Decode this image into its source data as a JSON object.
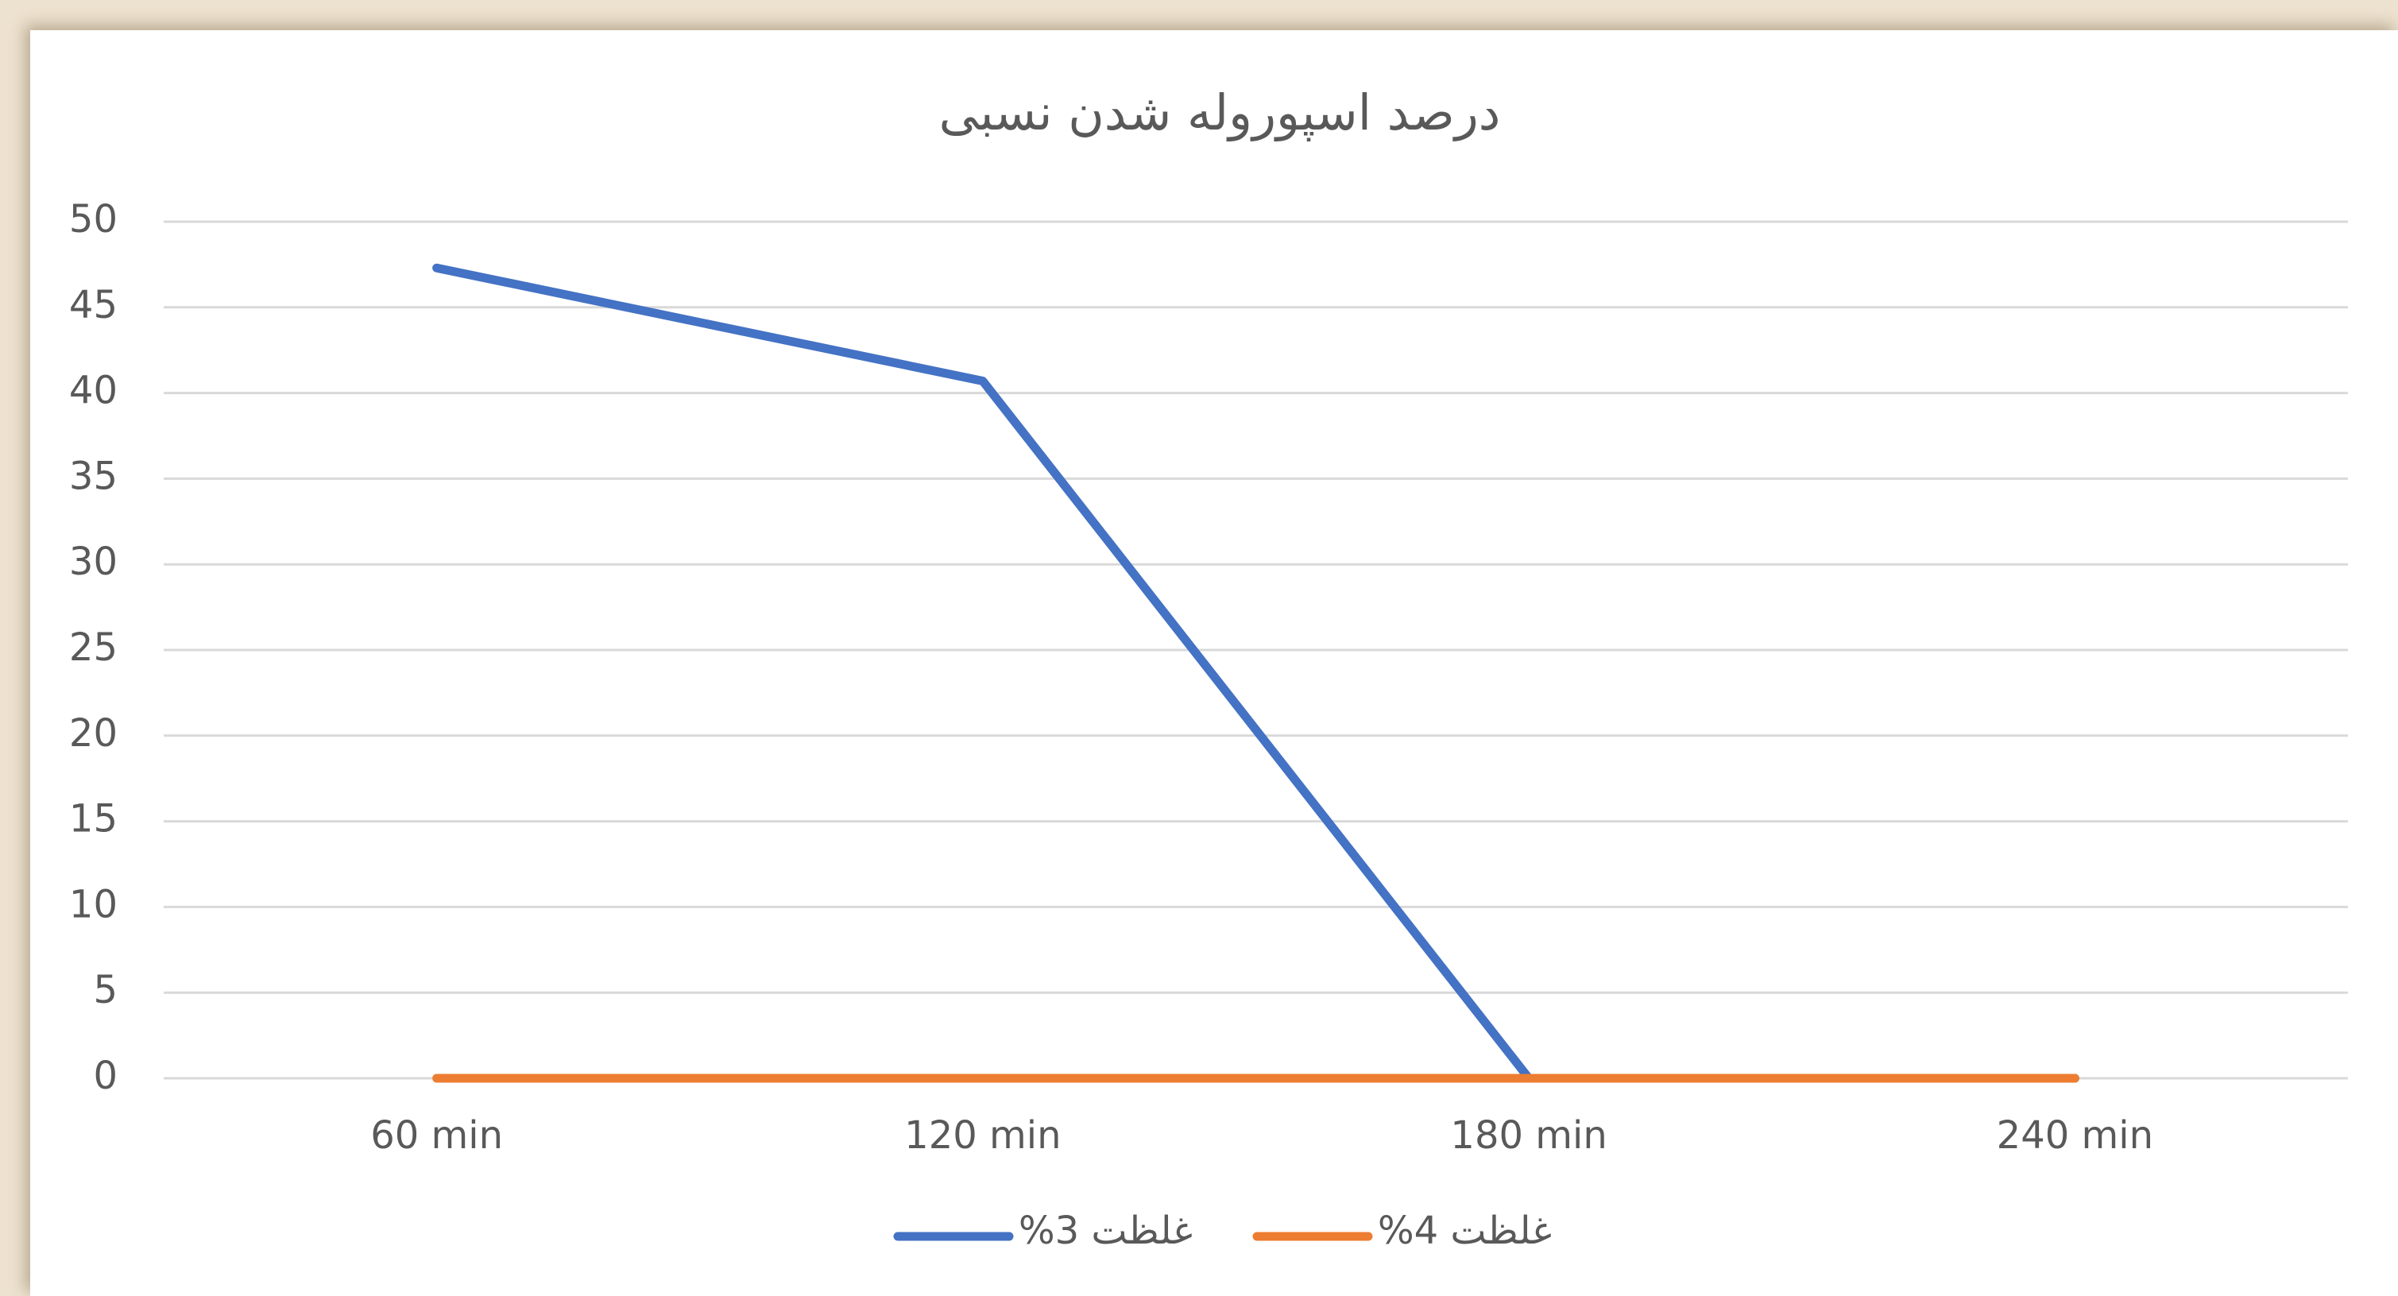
{
  "chart_data": {
    "type": "line",
    "title": "درصد اسپوروله شدن نسبی",
    "categories": [
      "60 min",
      "120 min",
      "180 min",
      "240 min"
    ],
    "series": [
      {
        "name": "غلظت 3%",
        "color": "#4472c4",
        "values": [
          47.3,
          40.7,
          0,
          0
        ]
      },
      {
        "name": "غلظت 4%",
        "color": "#ed7d31",
        "values": [
          0,
          0,
          0,
          0
        ]
      }
    ],
    "ylim": [
      0,
      50
    ],
    "yticks": [
      0,
      5,
      10,
      15,
      20,
      25,
      30,
      35,
      40,
      45,
      50
    ],
    "grid": true,
    "legend": "bottom"
  }
}
